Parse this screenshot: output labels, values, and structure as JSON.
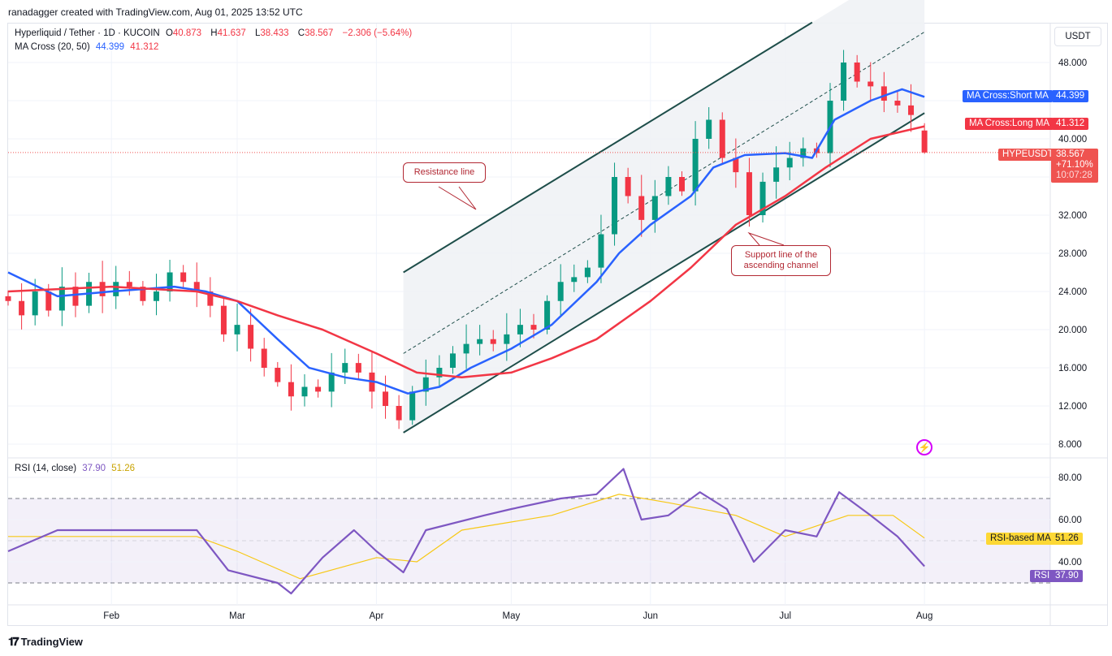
{
  "credit": "ranadagger created with TradingView.com, Aug 01, 2025 13:52 UTC",
  "header": {
    "symbol": "Hyperliquid / Tether · 1D · KUCOIN",
    "open_label": "O",
    "open": "40.873",
    "high_label": "H",
    "high": "41.637",
    "low_label": "L",
    "low": "38.433",
    "close_label": "C",
    "close": "38.567",
    "change": "−2.306 (−5.64%)",
    "ma_label": "MA Cross (20, 50)",
    "ma_short": "44.399",
    "ma_long": "41.312"
  },
  "rsi_header": {
    "label": "RSI (14, close)",
    "rsi": "37.90",
    "rsi_ma": "51.26"
  },
  "currency_button": "USDT",
  "tags": {
    "short_ma_name": "MA Cross:Short MA",
    "short_ma_value": "44.399",
    "long_ma_name": "MA Cross:Long MA",
    "long_ma_value": "41.312",
    "symbol_name": "HYPEUSDT",
    "price": "38.567",
    "pct": "+71.10%",
    "countdown": "10:07:28",
    "rsi_ma_name": "RSI-based MA",
    "rsi_ma_value": "51.26",
    "rsi_name": "RSI",
    "rsi_value": "37.90"
  },
  "annotations": {
    "resistance": "Resistance line",
    "support": "Support line of the ascending channel"
  },
  "footer": {
    "brand": "TradingView"
  },
  "colors": {
    "up": "#089981",
    "down": "#f23645",
    "short_ma": "#2962ff",
    "long_ma": "#f23645",
    "rsi": "#7e57c2",
    "rsi_ma": "#f7c815",
    "channel": "#1e4e4a"
  },
  "chart_data": [
    {
      "type": "candlestick",
      "title": "Hyperliquid / Tether · 1D · KUCOIN",
      "x_ticks": [
        "Feb",
        "Mar",
        "Apr",
        "May",
        "Jun",
        "Jul",
        "Aug"
      ],
      "y_ticks": [
        "48.000",
        "40.000",
        "32.000",
        "28.000",
        "24.000",
        "20.000",
        "16.000",
        "12.000",
        "8.000"
      ],
      "ylim": [
        8,
        52
      ],
      "grid": true,
      "close": [
        [
          "2025-01-09",
          23
        ],
        [
          "2025-01-12",
          21.5
        ],
        [
          "2025-01-15",
          24
        ],
        [
          "2025-01-18",
          22
        ],
        [
          "2025-01-21",
          24.5
        ],
        [
          "2025-01-24",
          22.5
        ],
        [
          "2025-01-27",
          25
        ],
        [
          "2025-01-30",
          23.5
        ],
        [
          "2025-02-02",
          25
        ],
        [
          "2025-02-05",
          24.5
        ],
        [
          "2025-02-08",
          23
        ],
        [
          "2025-02-11",
          24
        ],
        [
          "2025-02-14",
          26
        ],
        [
          "2025-02-17",
          25
        ],
        [
          "2025-02-20",
          24
        ],
        [
          "2025-02-23",
          22.5
        ],
        [
          "2025-02-26",
          19.5
        ],
        [
          "2025-03-01",
          20.5
        ],
        [
          "2025-03-04",
          18
        ],
        [
          "2025-03-07",
          16
        ],
        [
          "2025-03-10",
          14.5
        ],
        [
          "2025-03-13",
          13
        ],
        [
          "2025-03-16",
          14
        ],
        [
          "2025-03-19",
          13.5
        ],
        [
          "2025-03-22",
          15.5
        ],
        [
          "2025-03-25",
          16.5
        ],
        [
          "2025-03-28",
          15.5
        ],
        [
          "2025-03-31",
          13.5
        ],
        [
          "2025-04-03",
          12
        ],
        [
          "2025-04-06",
          10.5
        ],
        [
          "2025-04-09",
          13.5
        ],
        [
          "2025-04-12",
          15
        ],
        [
          "2025-04-15",
          16
        ],
        [
          "2025-04-18",
          17.5
        ],
        [
          "2025-04-21",
          18.5
        ],
        [
          "2025-04-24",
          19
        ],
        [
          "2025-04-27",
          18.5
        ],
        [
          "2025-04-30",
          19.5
        ],
        [
          "2025-05-03",
          20.5
        ],
        [
          "2025-05-06",
          20
        ],
        [
          "2025-05-09",
          23
        ],
        [
          "2025-05-12",
          25
        ],
        [
          "2025-05-15",
          25.5
        ],
        [
          "2025-05-18",
          26.5
        ],
        [
          "2025-05-21",
          30
        ],
        [
          "2025-05-24",
          36
        ],
        [
          "2025-05-27",
          34
        ],
        [
          "2025-05-30",
          31.5
        ],
        [
          "2025-06-02",
          34
        ],
        [
          "2025-06-05",
          36
        ],
        [
          "2025-06-08",
          34.5
        ],
        [
          "2025-06-11",
          40
        ],
        [
          "2025-06-14",
          42
        ],
        [
          "2025-06-17",
          38
        ],
        [
          "2025-06-20",
          36.5
        ],
        [
          "2025-06-23",
          32
        ],
        [
          "2025-06-26",
          35.5
        ],
        [
          "2025-06-29",
          37
        ],
        [
          "2025-07-02",
          38
        ],
        [
          "2025-07-05",
          39
        ],
        [
          "2025-07-08",
          38.5
        ],
        [
          "2025-07-11",
          44
        ],
        [
          "2025-07-14",
          48
        ],
        [
          "2025-07-17",
          46
        ],
        [
          "2025-07-20",
          45.5
        ],
        [
          "2025-07-23",
          44
        ],
        [
          "2025-07-26",
          43.5
        ],
        [
          "2025-07-29",
          42.5
        ],
        [
          "2025-08-01",
          38.567
        ]
      ],
      "series": [
        {
          "name": "MA Cross:Short MA",
          "points": [
            [
              "2025-01-09",
              26
            ],
            [
              "2025-01-20",
              23.5
            ],
            [
              "2025-02-01",
              24
            ],
            [
              "2025-02-15",
              24.5
            ],
            [
              "2025-02-22",
              24
            ],
            [
              "2025-03-01",
              23
            ],
            [
              "2025-03-10",
              19
            ],
            [
              "2025-03-17",
              16
            ],
            [
              "2025-03-25",
              15
            ],
            [
              "2025-04-01",
              14.5
            ],
            [
              "2025-04-08",
              13.3
            ],
            [
              "2025-04-15",
              14
            ],
            [
              "2025-04-22",
              16
            ],
            [
              "2025-05-01",
              18
            ],
            [
              "2025-05-10",
              20.5
            ],
            [
              "2025-05-20",
              25
            ],
            [
              "2025-05-25",
              28
            ],
            [
              "2025-06-01",
              31
            ],
            [
              "2025-06-10",
              34
            ],
            [
              "2025-06-15",
              37
            ],
            [
              "2025-06-22",
              38.3
            ],
            [
              "2025-07-01",
              38.5
            ],
            [
              "2025-07-07",
              38
            ],
            [
              "2025-07-12",
              42
            ],
            [
              "2025-07-20",
              44
            ],
            [
              "2025-07-27",
              45.2
            ],
            [
              "2025-08-01",
              44.399
            ]
          ]
        },
        {
          "name": "MA Cross:Long MA",
          "points": [
            [
              "2025-01-09",
              24
            ],
            [
              "2025-02-01",
              24.5
            ],
            [
              "2025-02-20",
              24
            ],
            [
              "2025-03-01",
              23
            ],
            [
              "2025-03-10",
              21.5
            ],
            [
              "2025-03-20",
              20
            ],
            [
              "2025-04-01",
              17.5
            ],
            [
              "2025-04-10",
              15.5
            ],
            [
              "2025-04-20",
              15
            ],
            [
              "2025-05-01",
              15.5
            ],
            [
              "2025-05-10",
              17
            ],
            [
              "2025-05-20",
              19
            ],
            [
              "2025-06-01",
              23
            ],
            [
              "2025-06-10",
              26.5
            ],
            [
              "2025-06-20",
              31
            ],
            [
              "2025-07-01",
              34
            ],
            [
              "2025-07-10",
              37
            ],
            [
              "2025-07-20",
              40
            ],
            [
              "2025-08-01",
              41.312
            ]
          ]
        }
      ],
      "channel": {
        "upper": [
          [
            "2025-04-07",
            26
          ],
          [
            "2025-07-07",
            52.2
          ]
        ],
        "middle": [
          [
            "2025-04-07",
            17.5
          ],
          [
            "2025-08-01",
            51.2
          ]
        ],
        "lower": [
          [
            "2025-04-07",
            9.2
          ],
          [
            "2025-08-01",
            42.7
          ]
        ]
      }
    },
    {
      "type": "line",
      "title": "RSI (14, close)",
      "y_ticks": [
        "80.00",
        "60.00",
        "40.00"
      ],
      "ylim": [
        20,
        90
      ],
      "bands": [
        30,
        70
      ],
      "series": [
        {
          "name": "RSI",
          "points": [
            [
              "2025-01-09",
              45
            ],
            [
              "2025-01-20",
              55
            ],
            [
              "2025-02-01",
              55
            ],
            [
              "2025-02-20",
              55
            ],
            [
              "2025-02-27",
              36
            ],
            [
              "2025-03-10",
              30
            ],
            [
              "2025-03-13",
              25
            ],
            [
              "2025-03-20",
              42
            ],
            [
              "2025-03-27",
              55
            ],
            [
              "2025-04-01",
              45
            ],
            [
              "2025-04-07",
              35
            ],
            [
              "2025-04-12",
              55
            ],
            [
              "2025-04-25",
              62
            ],
            [
              "2025-05-01",
              65
            ],
            [
              "2025-05-12",
              70
            ],
            [
              "2025-05-20",
              72
            ],
            [
              "2025-05-26",
              84
            ],
            [
              "2025-05-30",
              60
            ],
            [
              "2025-06-05",
              62
            ],
            [
              "2025-06-12",
              73
            ],
            [
              "2025-06-18",
              65
            ],
            [
              "2025-06-24",
              40
            ],
            [
              "2025-07-01",
              55
            ],
            [
              "2025-07-08",
              52
            ],
            [
              "2025-07-13",
              73
            ],
            [
              "2025-07-20",
              62
            ],
            [
              "2025-07-26",
              52
            ],
            [
              "2025-08-01",
              37.9
            ]
          ]
        },
        {
          "name": "RSI-based MA",
          "points": [
            [
              "2025-01-09",
              52
            ],
            [
              "2025-02-20",
              52
            ],
            [
              "2025-03-01",
              45
            ],
            [
              "2025-03-15",
              32
            ],
            [
              "2025-04-01",
              42
            ],
            [
              "2025-04-10",
              40
            ],
            [
              "2025-04-20",
              55
            ],
            [
              "2025-05-10",
              62
            ],
            [
              "2025-05-25",
              72
            ],
            [
              "2025-06-05",
              68
            ],
            [
              "2025-06-20",
              62
            ],
            [
              "2025-07-01",
              52
            ],
            [
              "2025-07-15",
              62
            ],
            [
              "2025-07-25",
              62
            ],
            [
              "2025-08-01",
              51.26
            ]
          ]
        }
      ]
    }
  ]
}
